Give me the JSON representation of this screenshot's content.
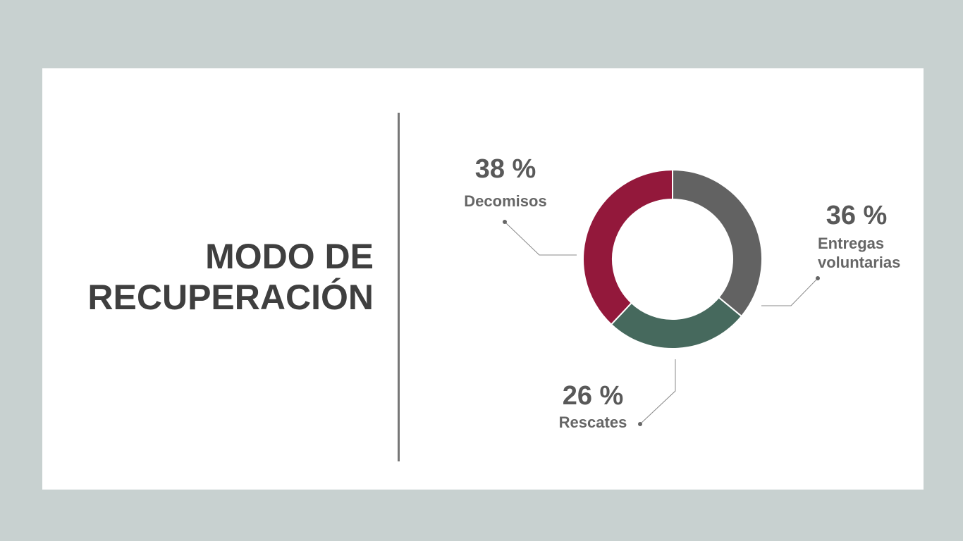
{
  "chart_data": {
    "type": "pie",
    "title": "MODO DE RECUPERACIÓN",
    "categories": [
      "Entregas voluntarias",
      "Rescates",
      "Decomisos"
    ],
    "values": [
      36,
      26,
      38
    ],
    "value_labels": [
      "36 %",
      "26 %",
      "38 %"
    ],
    "colors": [
      "#626262",
      "#46695d",
      "#93183b"
    ],
    "donut": true
  }
}
